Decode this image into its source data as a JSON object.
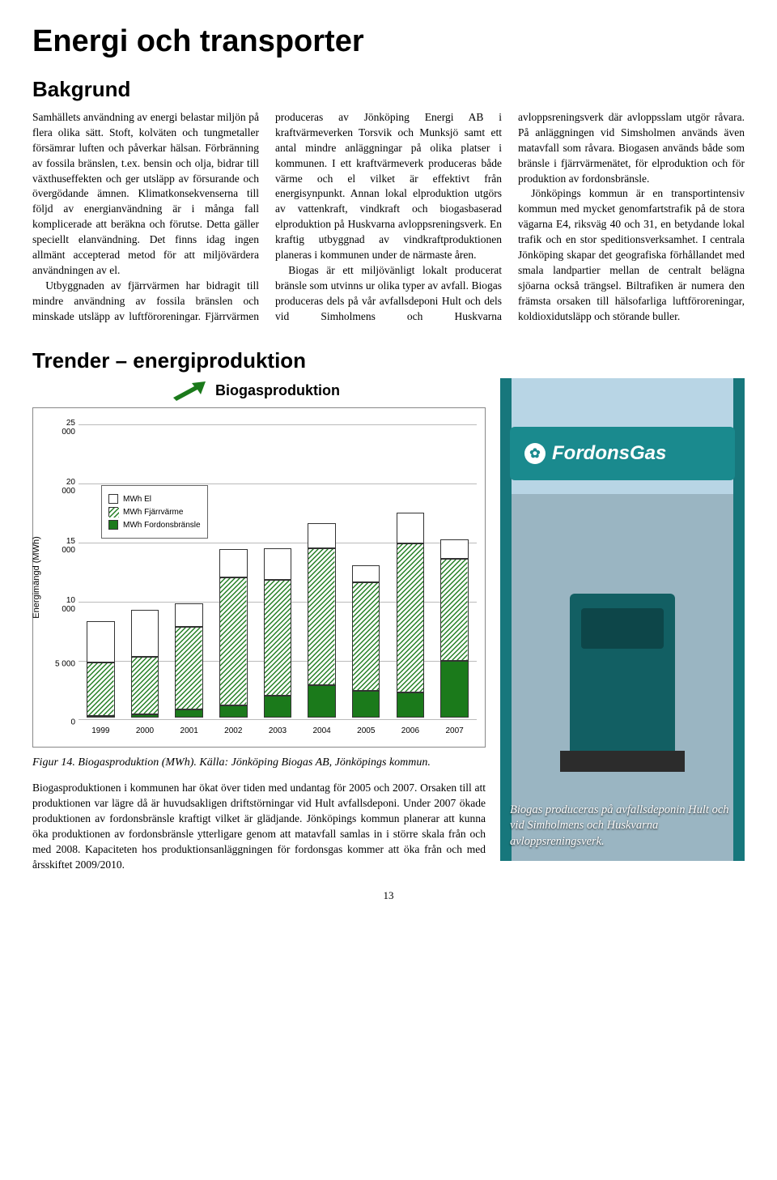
{
  "title": "Energi och transporter",
  "section_heading": "Bakgrund",
  "body_paragraphs": [
    "Samhällets användning av energi belastar miljön på flera olika sätt. Stoft, kolväten och tungmetaller försämrar luften och påverkar hälsan. Förbränning av fossila bränslen, t.ex. bensin och olja, bidrar till växthuseffekten och ger utsläpp av försurande och övergödande ämnen. Klimatkonsekvenserna till följd av energianvändning är i många fall komplicerade att beräkna och förutse. Detta gäller speciellt elanvändning. Det finns idag ingen allmänt accepterad metod för att miljövärdera användningen av el.",
    "Utbyggnaden av fjärrvärmen har bidragit till mindre användning av fossila bränslen och minskade utsläpp av luftföroreningar. Fjärrvärmen produceras av Jönköping Energi AB i kraftvärmeverken Torsvik och Munksjö samt ett antal mindre anläggningar på olika platser i kommunen. I ett kraftvärmeverk produceras både värme och el vilket är effektivt från energisynpunkt. Annan lokal elproduktion utgörs av vattenkraft, vindkraft och biogasbaserad elproduktion på Huskvarna avloppsreningsverk. En kraftig utbyggnad av vindkraftproduktionen planeras i kommunen under de närmaste åren.",
    "Biogas är ett miljövänligt lokalt producerat bränsle som utvinns ur olika typer av avfall. Biogas produceras dels på vår avfallsdeponi Hult och dels vid Simholmens och Huskvarna avloppsreningsverk där avloppsslam utgör råvara. På anläggningen vid Simsholmen används även matavfall som råvara. Biogasen används både som bränsle i fjärrvärmenätet, för elproduktion och för produktion av fordonsbränsle.",
    "Jönköpings kommun är en transportintensiv kommun med mycket genomfartstrafik på de stora vägarna E4, riksväg 40 och 31, en betydande lokal trafik och en stor speditionsverksamhet. I centrala Jönköping skapar det geografiska förhållandet med smala landpartier mellan de centralt belägna sjöarna också trängsel. Biltrafiken är numera den främsta orsaken till hälsofarliga luftföroreningar, koldioxidutsläpp och störande buller."
  ],
  "trender_heading": "Trender – energiproduktion",
  "chart": {
    "title": "Biogasproduktion",
    "y_label": "Energimängd (MWh)",
    "y_max": 25000,
    "y_ticks": [
      0,
      5000,
      10000,
      15000,
      20000,
      25000
    ],
    "y_tick_labels": [
      "0",
      "5 000",
      "10 000",
      "15 000",
      "20 000",
      "25 000"
    ],
    "categories": [
      "1999",
      "2000",
      "2001",
      "2002",
      "2003",
      "2004",
      "2005",
      "2006",
      "2007"
    ],
    "series": {
      "fordonsbransle": [
        0,
        300,
        700,
        1100,
        1900,
        2800,
        2300,
        2200,
        4900
      ],
      "fjarrvarme": [
        4600,
        4900,
        7100,
        10900,
        9900,
        11700,
        9300,
        12700,
        8700
      ],
      "el": [
        3500,
        4000,
        2000,
        2400,
        2700,
        2100,
        1400,
        2600,
        1600
      ]
    },
    "legend": {
      "el": "MWh El",
      "fjarrvarme": "MWh Fjärrvärme",
      "fordonsbransle": "MWh Fordonsbränsle"
    },
    "colors": {
      "fordonsbransle": "#1b7a1b",
      "fjarrvarme_pattern": "hatch",
      "el": "#ffffff",
      "border": "#333333",
      "grid": "#bbbbbb"
    }
  },
  "figure_caption": "Figur 14. Biogasproduktion (MWh). Källa: Jönköping Biogas AB, Jönköpings kommun.",
  "bottom_paragraph": "Biogasproduktionen i kommunen har ökat över tiden med undantag för 2005 och 2007. Orsaken till att produktionen var lägre då är huvudsakligen driftstörningar vid Hult avfallsdeponi. Under 2007 ökade produktionen av fordonsbränsle kraftigt vilket är glädjande. Jönköpings kommun planerar att kunna öka produktionen av fordonsbränsle ytterligare genom att matavfall samlas in i större skala från och med 2008. Kapaciteten hos produktionsanläggningen för fordonsgas kommer att öka från och med årsskiftet 2009/2010.",
  "photo": {
    "sign_text": "FordonsGas",
    "caption": "Biogas produceras på avfallsdeponin Hult och vid Simholmens och Huskvarna avloppsreningsverk."
  },
  "page_number": "13"
}
